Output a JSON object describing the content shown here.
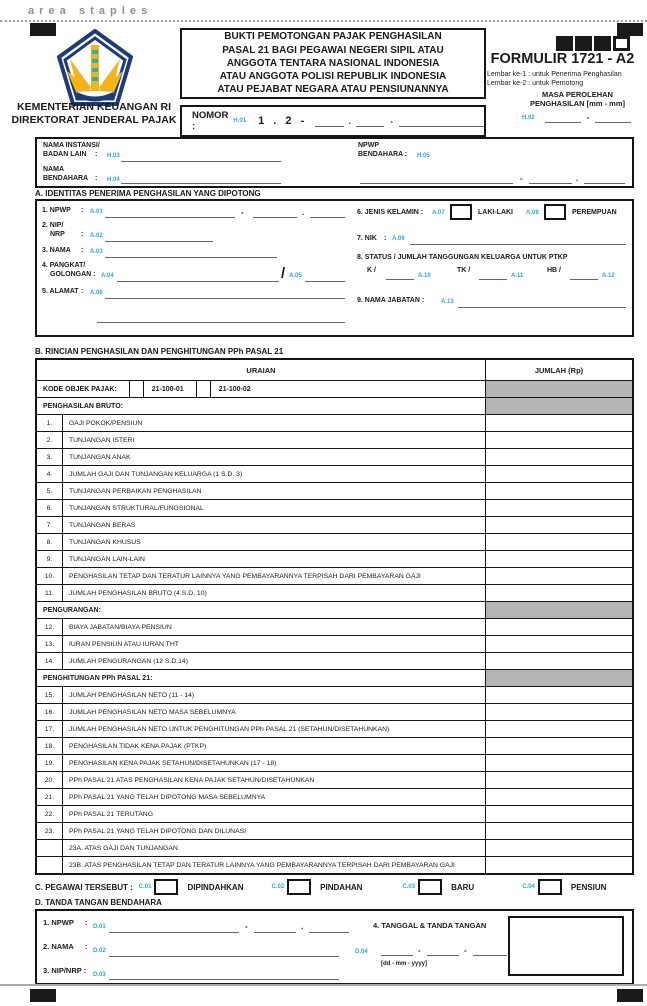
{
  "glyphs": {
    "dash": "-",
    "dot": ".",
    "slash": "/",
    "colon": ":"
  },
  "page": {
    "area_staples": "a r e a   s t a p l e s"
  },
  "colors": {
    "code_blue": "#29a9e1",
    "gray_cell": "#b5b5b5",
    "line_gray": "#666666"
  },
  "header": {
    "ministry": [
      "KEMENTERIAN KEUANGAN RI",
      "DIREKTORAT JENDERAL PAJAK"
    ],
    "title_lines": [
      "BUKTI PEMOTONGAN PAJAK PENGHASILAN",
      "PASAL 21 BAGI PEGAWAI NEGERI SIPIL ATAU",
      "ANGGOTA TENTARA NASIONAL INDONESIA",
      "ATAU ANGGOTA POLISI REPUBLIK INDONESIA",
      "ATAU  PEJABAT NEGARA ATAU PENSIUNANNYA"
    ],
    "form_code": "FORMULIR 1721 - A2",
    "lembar": [
      "Lembar ke-1 : untuk Penerima Penghasilan",
      "Lembar ke-2 : untuk Pemotong"
    ],
    "nomor_label": "NOMOR :",
    "nomor_code": "H.01",
    "nomor_digits": "1 . 2 -",
    "masa_label": [
      "MASA PEROLEHAN",
      "PENGHASILAN [mm - mm]"
    ],
    "masa_code": "H.02"
  },
  "instansi": {
    "nama_instansi": [
      "NAMA INSTANSI/",
      "BADAN LAIN"
    ],
    "nama_instansi_code": "H.03",
    "npwp_bendahara": [
      "NPWP",
      "BENDAHARA :"
    ],
    "npwp_bendahara_code": "H.05",
    "nama_bendahara": [
      "NAMA",
      "BENDAHARA"
    ],
    "nama_bendahara_code": "H.04"
  },
  "section_a": {
    "title": "A.  IDENTITAS PENERIMA PENGHASILAN YANG DIPOTONG",
    "npwp_label": "1. NPWP",
    "npwp_code": "A.01",
    "nip_label": [
      "2. NIP/",
      "NRP"
    ],
    "nip_code": "A.02",
    "nama_label": "3. NAMA",
    "nama_code": "A.03",
    "pangkat_label": [
      "4. PANGKAT/",
      "GOLONGAN :"
    ],
    "pangkat_code": "A.04",
    "golongan_code": "A.05",
    "alamat_label": "5. ALAMAT",
    "alamat_code": "A.06",
    "kelamin_label": "6. JENIS KELAMIN :",
    "kelamin_code1": "A.07",
    "kelamin_opt1": "LAKI-LAKI",
    "kelamin_code2": "A.08",
    "kelamin_opt2": "PEREMPUAN",
    "nik_label": "7. NIK",
    "nik_code": "A.09",
    "status_label": "8. STATUS / JUMLAH TANGGUNGAN KELUARGA UNTUK PTKP",
    "status_k": "K /",
    "status_k_code": "A.10",
    "status_tk": "TK /",
    "status_tk_code": "A.11",
    "status_hb": "HB /",
    "status_hb_code": "A.12",
    "jabatan_label": "9. NAMA JABATAN  :",
    "jabatan_code": "A.13"
  },
  "section_b": {
    "title": "B. RINCIAN PENGHASILAN DAN PENGHITUNGAN PPh PASAL 21",
    "table": {
      "header_uraian": "URAIAN",
      "header_jumlah": "JUMLAH (Rp)",
      "rows": [
        {
          "type": "kode",
          "label": "KODE OBJEK PAJAK:",
          "options": [
            "21-100-01",
            "21-100-02"
          ]
        },
        {
          "type": "section",
          "label": "PENGHASILAN BRUTO:"
        },
        {
          "type": "item",
          "num": "1.",
          "label": "GAJI POKOK/PENSIUN"
        },
        {
          "type": "item",
          "num": "2.",
          "label": "TUNJANGAN ISTERI"
        },
        {
          "type": "item",
          "num": "3.",
          "label": "TUNJANGAN ANAK"
        },
        {
          "type": "item",
          "num": "4.",
          "label": "JUMLAH GAJI DAN TUNJANGAN KELUARGA (1 S.D. 3)"
        },
        {
          "type": "item",
          "num": "5.",
          "label": "TUNJANGAN PERBAIKAN PENGHASILAN"
        },
        {
          "type": "item",
          "num": "6.",
          "label": "TUNJANGAN STRUKTURAL/FUNGSIONAL"
        },
        {
          "type": "item",
          "num": "7.",
          "label": "TUNJANGAN BERAS"
        },
        {
          "type": "item",
          "num": "8.",
          "label": "TUNJANGAN KHUSUS"
        },
        {
          "type": "item",
          "num": "9.",
          "label": "TUNJANGAN LAIN-LAIN"
        },
        {
          "type": "item",
          "num": "10.",
          "label": "PENGHASILAN TETAP DAN TERATUR LAINNYA YANG PEMBAYARANNYA TERPISAH DARI PEMBAYARAN GAJI"
        },
        {
          "type": "item",
          "num": "11.",
          "label": "JUMLAH PENGHASILAN BRUTO (4 S.D. 10)"
        },
        {
          "type": "section",
          "label": "PENGURANGAN:"
        },
        {
          "type": "item",
          "num": "12.",
          "label": "BIAYA JABATAN/BIAYA PENSIUN"
        },
        {
          "type": "item",
          "num": "13.",
          "label": "IURAN PENSIUN ATAU IURAN THT"
        },
        {
          "type": "item",
          "num": "14.",
          "label": "JUMLAH PENGURANGAN (12 S.D.14)"
        },
        {
          "type": "section",
          "label": "PENGHITUNGAN PPh PASAL 21:"
        },
        {
          "type": "item",
          "num": "15.",
          "label": "JUMLAH PENGHASILAN NETO (11 - 14)"
        },
        {
          "type": "item",
          "num": "16.",
          "label": "JUMLAH PENGHASILAN NETO MASA SEBELUMNYA"
        },
        {
          "type": "item",
          "num": "17.",
          "label": "JUMLAH PENGHASILAN NETO UNTUK PENGHITUNGAN PPh PASAL 21 (SETAHUN/DISETAHUNKAN)"
        },
        {
          "type": "item",
          "num": "18.",
          "label": "PENGHASILAN TIDAK KENA PAJAK (PTKP)"
        },
        {
          "type": "item",
          "num": "19.",
          "label": "PENGHASILAN KENA PAJAK SETAHUN/DISETAHUNKAN (17 - 18)"
        },
        {
          "type": "item",
          "num": "20.",
          "label": "PPh PASAL 21 ATAS PENGHASILAN KENA PAJAK SETAHUN/DISETAHUNKAN"
        },
        {
          "type": "item",
          "num": "21.",
          "label": "PPh PASAL 21 YANG TELAH DIPOTONG MASA SEBELUMNYA"
        },
        {
          "type": "item",
          "num": "22.",
          "label": "PPh PASAL 21 TERUTANG"
        },
        {
          "type": "item",
          "num": "23.",
          "label": "PPh PASAL 21 YANG TELAH DIPOTONG DAN DILUNASI"
        },
        {
          "type": "sub",
          "num": "",
          "label": "23A. ATAS GAJI DAN TUNJANGAN"
        },
        {
          "type": "sub",
          "num": "",
          "label": "23B. ATAS PENGHASILAN TETAP DAN TERATUR LAINNYA YANG PEMBAYARANNYA TERPISAH DARI PEMBAYARAN GAJI"
        }
      ]
    }
  },
  "section_c": {
    "label": "C. PEGAWAI TERSEBUT :",
    "options": [
      {
        "code": "C.01",
        "label": "DIPINDAHKAN"
      },
      {
        "code": "C.02",
        "label": "PINDAHAN"
      },
      {
        "code": "C.03",
        "label": "BARU"
      },
      {
        "code": "C.04",
        "label": "PENSIUN"
      }
    ]
  },
  "section_d": {
    "title": "D. TANDA TANGAN BENDAHARA",
    "npwp_label": "1. NPWP",
    "npwp_code": "D.01",
    "nama_label": "2. NAMA",
    "nama_code": "D.02",
    "nip_label": "3. NIP/NRP :",
    "nip_code": "D.03",
    "tanggal_label": "4. TANGGAL & TANDA TANGAN",
    "tanggal_code": "D.04",
    "tanggal_hint": "[dd - mm - yyyy]"
  }
}
